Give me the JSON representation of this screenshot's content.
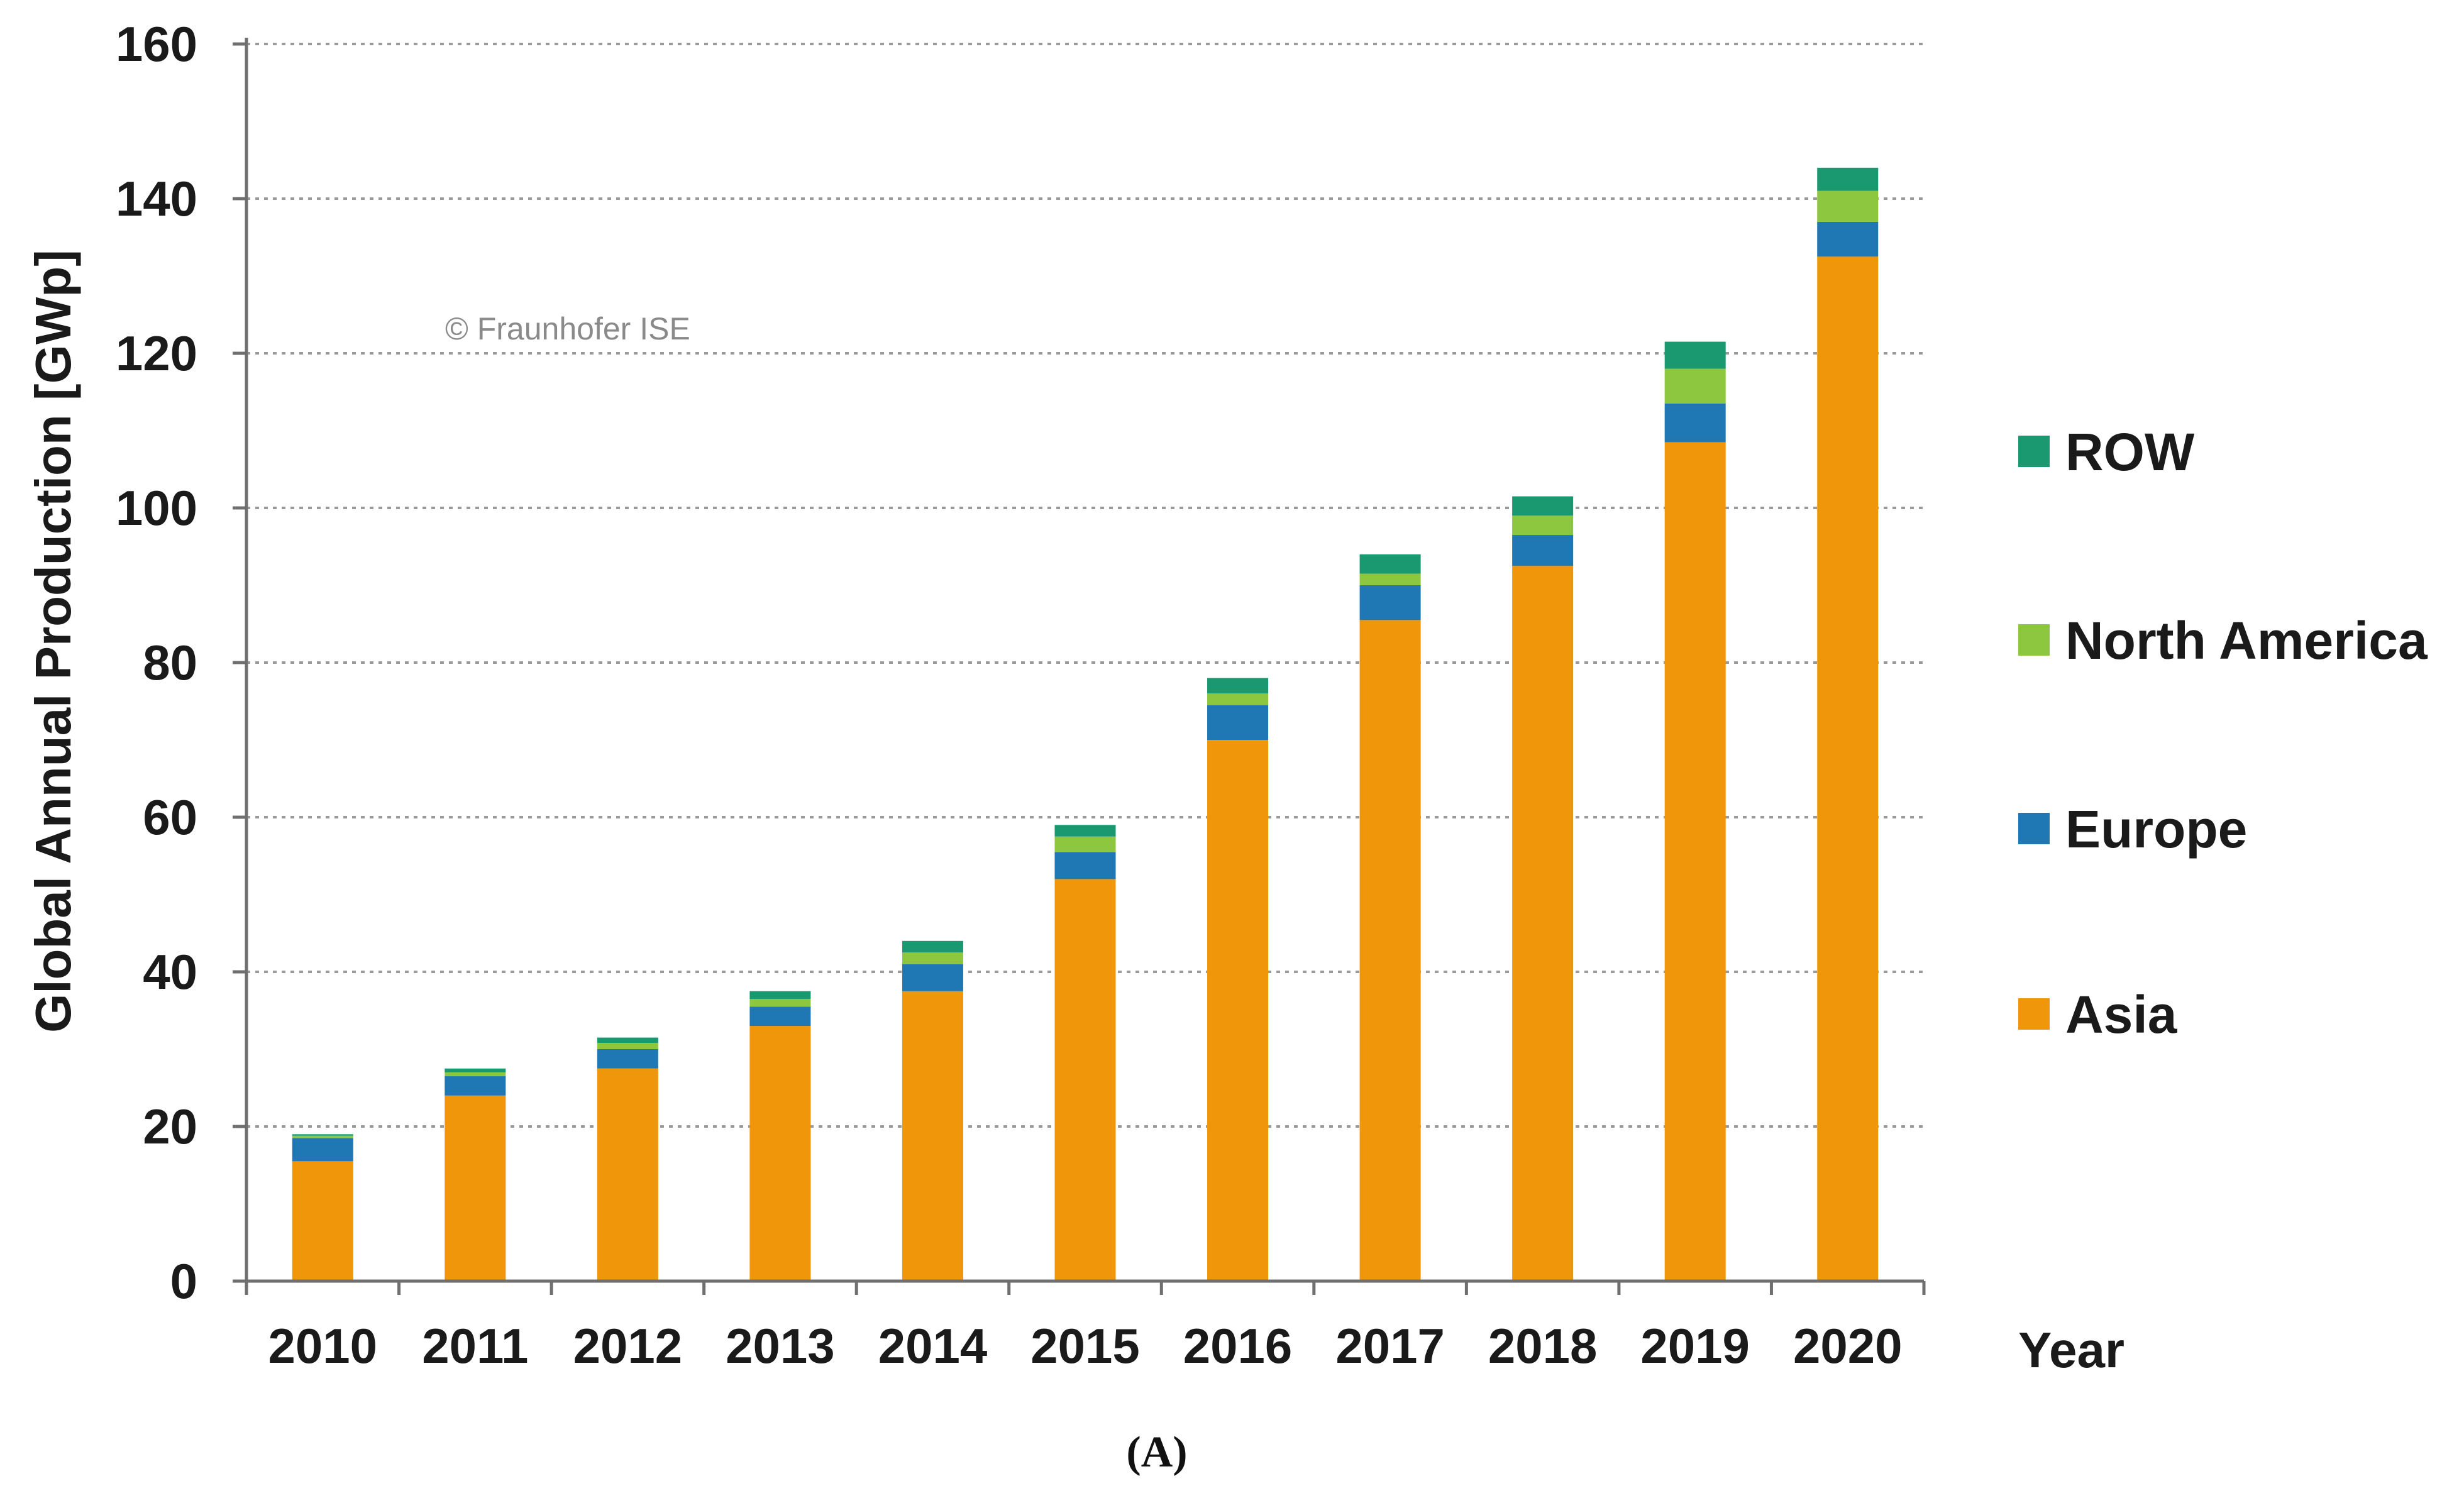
{
  "chart_data": {
    "type": "bar",
    "stacked": true,
    "ylabel": "Global Annual Production [GWp]",
    "xlabel": "Year",
    "watermark": "© Fraunhofer ISE",
    "caption": "(A)",
    "ylim": [
      0,
      160
    ],
    "yticks": [
      0,
      20,
      40,
      60,
      80,
      100,
      120,
      140,
      160
    ],
    "grid": true,
    "legend_position": "right",
    "categories": [
      "2010",
      "2011",
      "2012",
      "2013",
      "2014",
      "2015",
      "2016",
      "2017",
      "2018",
      "2019",
      "2020"
    ],
    "series": [
      {
        "name": "Asia",
        "color": "#F0960A",
        "values": [
          15.5,
          24,
          27.5,
          33,
          37.5,
          52,
          70,
          85.5,
          92.5,
          108.5,
          132.5
        ]
      },
      {
        "name": "Europe",
        "color": "#1F78B4",
        "values": [
          3,
          2.5,
          2.5,
          2.5,
          3.5,
          3.5,
          4.5,
          4.5,
          4,
          5,
          4.5
        ]
      },
      {
        "name": "North America",
        "color": "#8DC63F",
        "values": [
          0.3,
          0.5,
          0.8,
          1,
          1.5,
          2,
          1.5,
          1.5,
          2.5,
          4.5,
          4
        ]
      },
      {
        "name": "ROW",
        "color": "#1A9970",
        "values": [
          0.2,
          0.5,
          0.7,
          1,
          1.5,
          1.5,
          2,
          2.5,
          2.5,
          3.5,
          3
        ]
      }
    ],
    "legend_order": [
      "ROW",
      "North America",
      "Europe",
      "Asia"
    ]
  }
}
